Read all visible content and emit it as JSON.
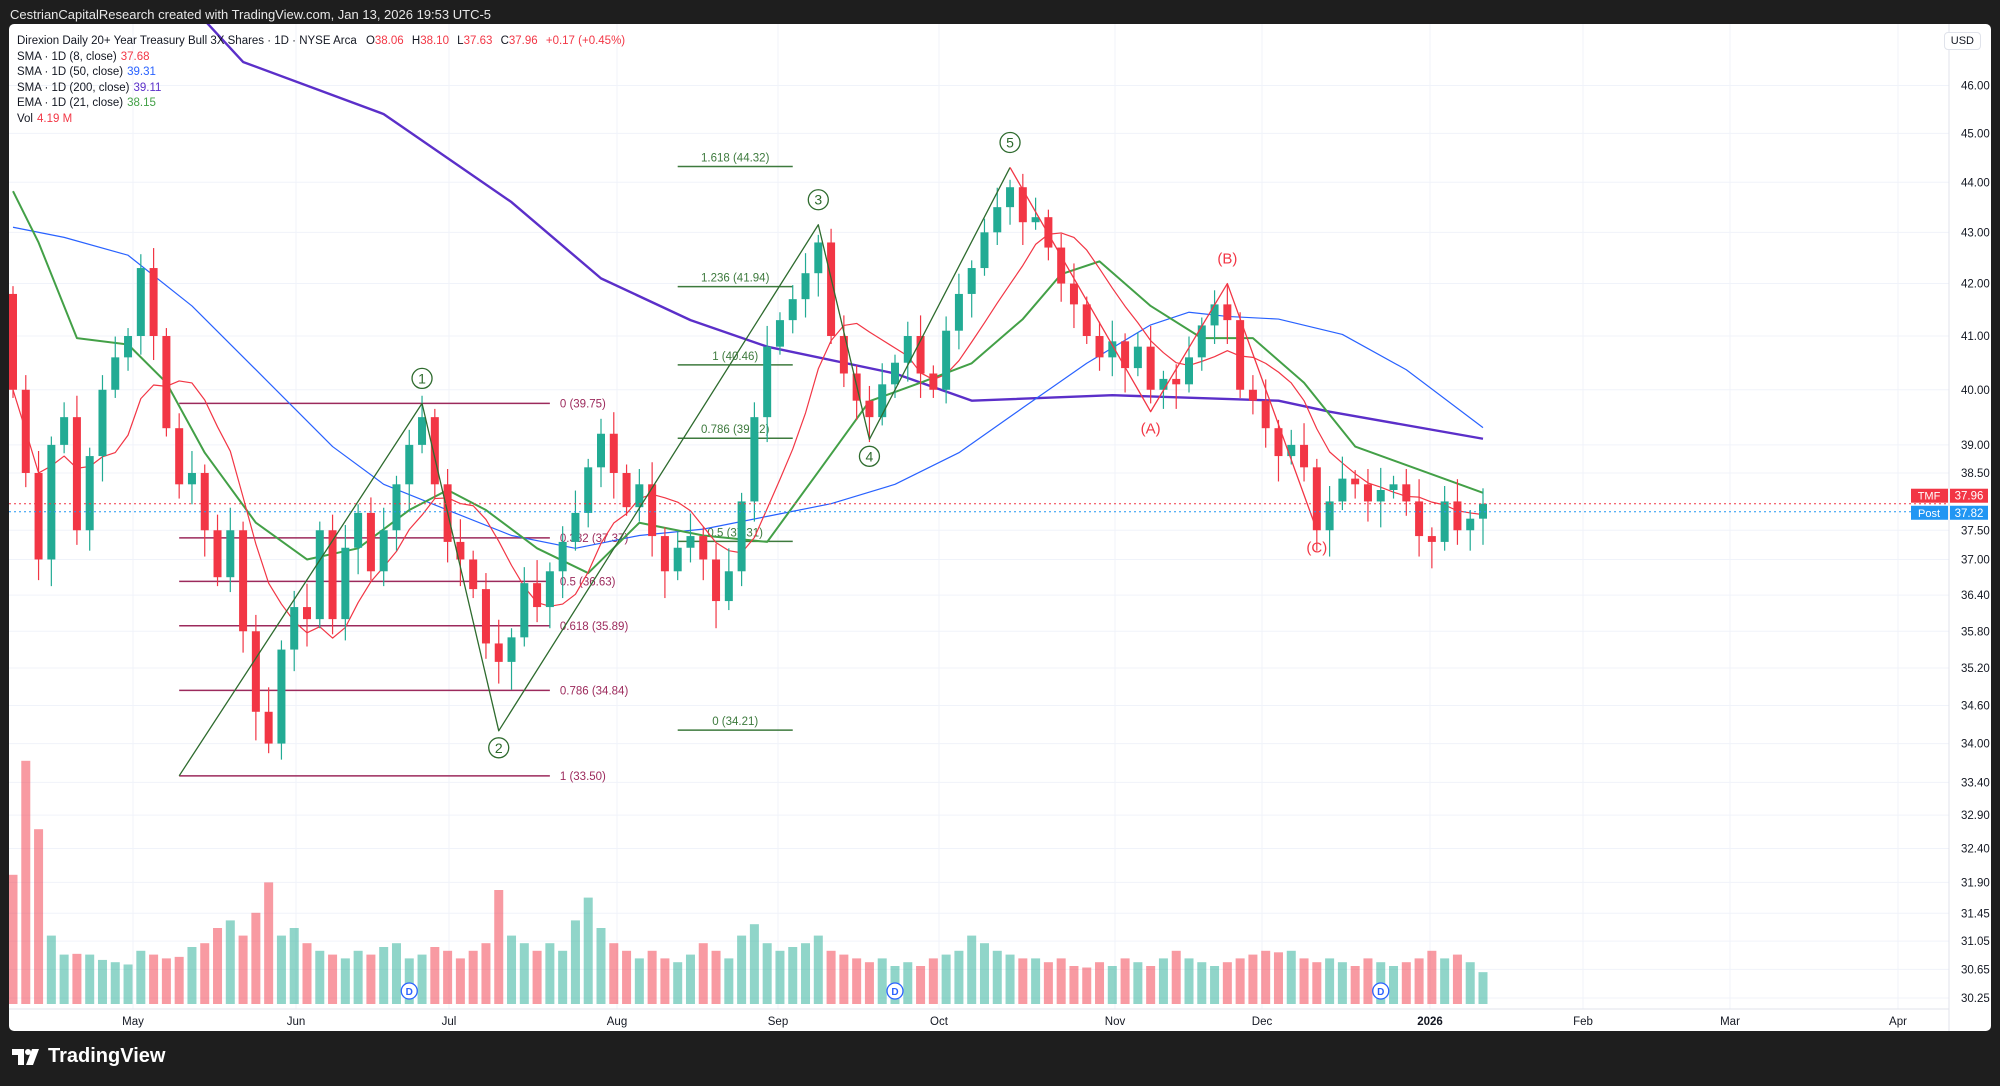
{
  "header": {
    "attribution": "CestrianCapitalResearch created with TradingView.com, Jan 13, 2026 19:53 UTC-5"
  },
  "legend": {
    "symbol": "Direxion Daily 20+ Year Treasury Bull 3X Shares · 1D · NYSE Arca",
    "o_label": "O",
    "o": "38.06",
    "h_label": "H",
    "h": "38.10",
    "l_label": "L",
    "l": "37.63",
    "c_label": "C",
    "c": "37.96",
    "change": "+0.17 (+0.45%)",
    "indicators": [
      {
        "label": "SMA · 1D (8, close)",
        "value": "37.68",
        "color": "#f23645"
      },
      {
        "label": "SMA · 1D (50, close)",
        "value": "39.31",
        "color": "#2962ff"
      },
      {
        "label": "SMA · 1D (200, close)",
        "value": "39.11",
        "color": "#5b2fc9"
      },
      {
        "label": "EMA · 1D (21, close)",
        "value": "38.15",
        "color": "#43a047"
      },
      {
        "label": "Vol",
        "value": "4.19 M",
        "color": "#f23645"
      }
    ]
  },
  "price_axis": {
    "currency": "USD",
    "ticks": [
      "46.00",
      "45.00",
      "44.00",
      "43.00",
      "42.00",
      "41.00",
      "40.00",
      "39.00",
      "38.50",
      "37.50",
      "37.00",
      "36.40",
      "35.80",
      "35.20",
      "34.60",
      "34.00",
      "33.40",
      "32.90",
      "32.40",
      "31.90",
      "31.45",
      "31.05",
      "30.65",
      "30.25"
    ]
  },
  "time_axis": {
    "labels": [
      "May",
      "Jun",
      "Jul",
      "Aug",
      "Sep",
      "Oct",
      "Nov",
      "Dec",
      "2026",
      "Feb",
      "Mar",
      "Apr"
    ]
  },
  "price_tags": [
    {
      "name": "TMF",
      "value": "37.96",
      "price": 37.96,
      "color": "#f23645"
    },
    {
      "name": "Post",
      "value": "37.82",
      "price": 37.82,
      "color": "#2196f3"
    }
  ],
  "footer": {
    "brand": "TradingView"
  },
  "chart_data": {
    "type": "candlestick",
    "title": "Direxion Daily 20+ Year Treasury Bull 3X Shares · 1D · NYSE Arca",
    "scale": "log",
    "colors": {
      "up": "#22ab94",
      "down": "#f23645"
    },
    "closes": [
      40.0,
      38.5,
      37.0,
      39.0,
      39.5,
      37.5,
      38.8,
      40.0,
      40.6,
      41.0,
      42.3,
      41.0,
      39.3,
      38.3,
      38.5,
      37.5,
      36.7,
      37.5,
      35.8,
      34.5,
      34.0,
      35.5,
      36.2,
      36.0,
      37.5,
      36.0,
      37.2,
      37.8,
      36.8,
      37.5,
      38.3,
      39.0,
      39.5,
      38.3,
      37.3,
      37.0,
      36.5,
      35.6,
      35.3,
      35.7,
      36.6,
      36.2,
      36.8,
      37.3,
      37.8,
      38.6,
      39.2,
      38.5,
      37.9,
      38.3,
      37.4,
      36.8,
      37.2,
      37.4,
      37.0,
      36.3,
      36.8,
      38.0,
      39.5,
      40.8,
      41.3,
      41.7,
      42.2,
      42.8,
      41.0,
      40.3,
      39.8,
      39.5,
      40.1,
      40.5,
      41.0,
      40.3,
      40.0,
      41.1,
      41.8,
      42.3,
      43.0,
      43.5,
      43.9,
      43.2,
      43.3,
      42.7,
      42.0,
      41.6,
      41.0,
      40.6,
      40.9,
      40.4,
      40.8,
      40.0,
      40.2,
      40.1,
      40.6,
      41.2,
      41.6,
      41.3,
      40.0,
      39.8,
      39.3,
      38.8,
      39.0,
      38.6,
      37.5,
      38.0,
      38.4,
      38.3,
      38.0,
      38.2,
      38.3,
      38.0,
      37.4,
      37.3,
      38.0,
      37.5,
      37.7,
      37.96
    ],
    "first_open": 41.8,
    "volume_millions": [
      17,
      32,
      23,
      9,
      6.5,
      6.6,
      6.5,
      5.8,
      5.5,
      5.2,
      7,
      6.5,
      6,
      6.2,
      7.5,
      8,
      10,
      11,
      9,
      12,
      16,
      9,
      10,
      8,
      7,
      6.5,
      6,
      7,
      6.5,
      7.5,
      8,
      6,
      6.5,
      7.5,
      7,
      6,
      7,
      8,
      15,
      9,
      8,
      7,
      8,
      7,
      11,
      14,
      10,
      8,
      7,
      6,
      7,
      6,
      5.5,
      6.5,
      8,
      7,
      6,
      9,
      10.5,
      8,
      7,
      7.5,
      8,
      9,
      7,
      6.5,
      6,
      5.5,
      6,
      5,
      5.5,
      5,
      6,
      6.5,
      7,
      9,
      8,
      7,
      6.5,
      6,
      6,
      5.5,
      6,
      5,
      4.8,
      5.5,
      5,
      6,
      5.5,
      5,
      6,
      7,
      6,
      5.5,
      5,
      5.5,
      6,
      6.5,
      7,
      6.8,
      7,
      6,
      5.5,
      6,
      5.5,
      5,
      6,
      5.5,
      5,
      5.5,
      6,
      7,
      6,
      6.5,
      5.5,
      4.19
    ],
    "sma50": [
      [
        0,
        43.1
      ],
      [
        4,
        42.9
      ],
      [
        9,
        42.55
      ],
      [
        14,
        41.57
      ],
      [
        19,
        40.37
      ],
      [
        25,
        38.97
      ],
      [
        29,
        38.3
      ],
      [
        34,
        37.85
      ],
      [
        39,
        37.41
      ],
      [
        44,
        37.19
      ],
      [
        49,
        37.41
      ],
      [
        54,
        37.52
      ],
      [
        59,
        37.74
      ],
      [
        64,
        37.96
      ],
      [
        69,
        38.3
      ],
      [
        74,
        38.86
      ],
      [
        79,
        39.67
      ],
      [
        84,
        40.49
      ],
      [
        89,
        41.21
      ],
      [
        92,
        41.45
      ],
      [
        95,
        41.37
      ],
      [
        99,
        41.32
      ],
      [
        104,
        41.03
      ],
      [
        109,
        40.37
      ],
      [
        115,
        39.31
      ]
    ],
    "sma200": [
      [
        13,
        48.0
      ],
      [
        18,
        46.5
      ],
      [
        29,
        45.4
      ],
      [
        39,
        43.6
      ],
      [
        46,
        42.1
      ],
      [
        53,
        41.3
      ],
      [
        59,
        40.8
      ],
      [
        69,
        40.3
      ],
      [
        75,
        39.8
      ],
      [
        86,
        39.9
      ],
      [
        99,
        39.8
      ],
      [
        103,
        39.6
      ],
      [
        115,
        39.11
      ]
    ],
    "ema21": [
      [
        0,
        43.82
      ],
      [
        2,
        42.8
      ],
      [
        5,
        40.96
      ],
      [
        9,
        40.84
      ],
      [
        12,
        40.13
      ],
      [
        15,
        38.86
      ],
      [
        19,
        37.63
      ],
      [
        23,
        37.0
      ],
      [
        27,
        37.19
      ],
      [
        31,
        37.85
      ],
      [
        34,
        38.2
      ],
      [
        37,
        37.85
      ],
      [
        41,
        37.19
      ],
      [
        45,
        36.77
      ],
      [
        49,
        37.63
      ],
      [
        54,
        37.41
      ],
      [
        59,
        37.3
      ],
      [
        63,
        38.52
      ],
      [
        67,
        39.79
      ],
      [
        71,
        40.13
      ],
      [
        75,
        40.49
      ],
      [
        79,
        41.32
      ],
      [
        82,
        42.18
      ],
      [
        85,
        42.43
      ],
      [
        89,
        41.57
      ],
      [
        93,
        40.96
      ],
      [
        97,
        40.96
      ],
      [
        101,
        40.13
      ],
      [
        105,
        38.97
      ],
      [
        109,
        38.64
      ],
      [
        115,
        38.15
      ]
    ],
    "fib_retracement": {
      "color": "#9c2a5c",
      "from": 13,
      "to": 42,
      "levels": [
        {
          "label": "0 (39.75)",
          "price": 39.75
        },
        {
          "label": "0.382 (37.37)",
          "price": 37.37
        },
        {
          "label": "0.5 (36.63)",
          "price": 36.63
        },
        {
          "label": "0.618 (35.89)",
          "price": 35.89
        },
        {
          "label": "0.786 (34.84)",
          "price": 34.84
        },
        {
          "label": "1 (33.50)",
          "price": 33.5
        }
      ]
    },
    "fib_extension": {
      "color": "#3d7a3d",
      "from": 52,
      "to": 61,
      "levels": [
        {
          "label": "1.618 (44.32)",
          "price": 44.32
        },
        {
          "label": "1.236 (41.94)",
          "price": 41.94
        },
        {
          "label": "1 (40.46)",
          "price": 40.46
        },
        {
          "label": "0.786 (39.12)",
          "price": 39.12
        },
        {
          "label": "0.5 (37.31)",
          "price": 37.31
        },
        {
          "label": "0 (34.21)",
          "price": 34.21
        }
      ]
    },
    "impulse_wave": {
      "color": "#2e6b2e",
      "points": [
        {
          "i": 13,
          "p": 33.5,
          "label": ""
        },
        {
          "i": 32,
          "p": 39.75,
          "label": "1"
        },
        {
          "i": 38,
          "p": 34.2,
          "label": "2"
        },
        {
          "i": 63,
          "p": 43.15,
          "label": "3"
        },
        {
          "i": 67,
          "p": 39.1,
          "label": "4"
        },
        {
          "i": 78,
          "p": 44.3,
          "label": "5"
        }
      ]
    },
    "corrective_wave": {
      "color": "#f23645",
      "points": [
        {
          "i": 78,
          "p": 44.3,
          "label": ""
        },
        {
          "i": 89,
          "p": 39.6,
          "label": "(A)"
        },
        {
          "i": 95,
          "p": 42.0,
          "label": "(B)"
        },
        {
          "i": 102,
          "p": 37.5,
          "label": "(C)"
        }
      ]
    },
    "dividend_markers": [
      {
        "i": 31,
        "label": "D"
      },
      {
        "i": 69,
        "label": "D"
      },
      {
        "i": 107,
        "label": "D"
      }
    ]
  }
}
